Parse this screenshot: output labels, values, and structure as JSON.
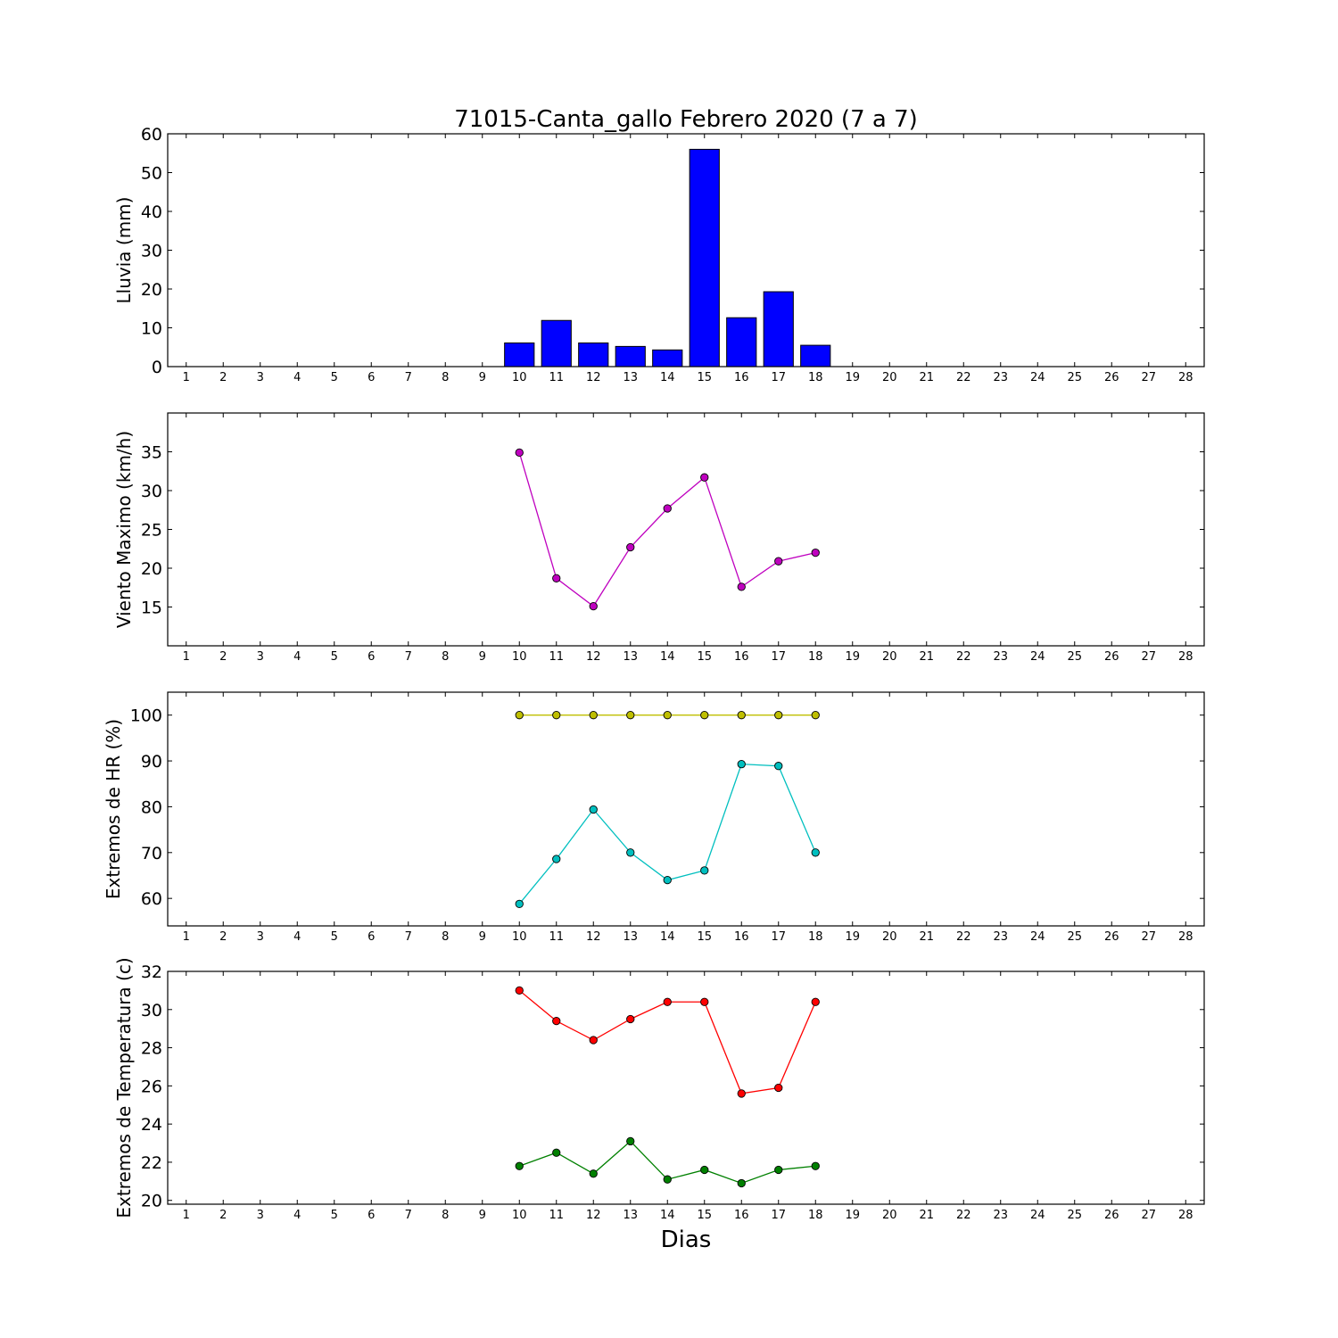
{
  "title": "71015-Canta_gallo Febrero 2020  (7 a 7)",
  "xlabel": "Dias",
  "chart_data": [
    {
      "type": "bar",
      "ylabel": "Lluvia (mm)",
      "ylim": [
        0,
        60
      ],
      "yticks": [
        0,
        10,
        20,
        30,
        40,
        50,
        60
      ],
      "xticks": [
        1,
        2,
        3,
        4,
        5,
        6,
        7,
        8,
        9,
        10,
        11,
        12,
        13,
        14,
        15,
        16,
        17,
        18,
        19,
        20,
        21,
        22,
        23,
        24,
        25,
        26,
        27,
        28
      ],
      "xlim": [
        0.5,
        28.5
      ],
      "color": "#0000ff",
      "x": [
        10,
        11,
        12,
        13,
        14,
        15,
        16,
        17,
        18
      ],
      "values": [
        6.1,
        11.9,
        6.1,
        5.2,
        4.3,
        56.0,
        12.6,
        19.3,
        5.5
      ]
    },
    {
      "type": "line",
      "ylabel": "Viento Maximo (km/h)",
      "ylim": [
        10,
        40
      ],
      "yticks": [
        15,
        20,
        25,
        30,
        35
      ],
      "xticks": [
        1,
        2,
        3,
        4,
        5,
        6,
        7,
        8,
        9,
        10,
        11,
        12,
        13,
        14,
        15,
        16,
        17,
        18,
        19,
        20,
        21,
        22,
        23,
        24,
        25,
        26,
        27,
        28
      ],
      "xlim": [
        0.5,
        28.5
      ],
      "series": [
        {
          "color": "#bf00bf",
          "x": [
            10,
            11,
            12,
            13,
            14,
            15,
            16,
            17,
            18
          ],
          "values": [
            34.9,
            18.7,
            15.1,
            22.7,
            27.7,
            31.7,
            17.6,
            20.9,
            22.0
          ]
        }
      ]
    },
    {
      "type": "line",
      "ylabel": "Extremos de HR (%)",
      "ylim": [
        54,
        105
      ],
      "yticks": [
        60,
        70,
        80,
        90,
        100
      ],
      "xticks": [
        1,
        2,
        3,
        4,
        5,
        6,
        7,
        8,
        9,
        10,
        11,
        12,
        13,
        14,
        15,
        16,
        17,
        18,
        19,
        20,
        21,
        22,
        23,
        24,
        25,
        26,
        27,
        28
      ],
      "xlim": [
        0.5,
        28.5
      ],
      "series": [
        {
          "color": "#bfbf00",
          "x": [
            10,
            11,
            12,
            13,
            14,
            15,
            16,
            17,
            18
          ],
          "values": [
            100,
            100,
            100,
            100,
            100,
            100,
            100,
            100,
            100
          ]
        },
        {
          "color": "#00bfbf",
          "x": [
            10,
            11,
            12,
            13,
            14,
            15,
            16,
            17,
            18
          ],
          "values": [
            58.8,
            68.6,
            79.4,
            70.0,
            64.0,
            66.1,
            89.3,
            88.9,
            70.0
          ]
        }
      ]
    },
    {
      "type": "line",
      "ylabel": "Extremos de Temperatura (c)",
      "ylim": [
        19.8,
        32
      ],
      "yticks": [
        20,
        22,
        24,
        26,
        28,
        30,
        32
      ],
      "xticks": [
        1,
        2,
        3,
        4,
        5,
        6,
        7,
        8,
        9,
        10,
        11,
        12,
        13,
        14,
        15,
        16,
        17,
        18,
        19,
        20,
        21,
        22,
        23,
        24,
        25,
        26,
        27,
        28
      ],
      "xlim": [
        0.5,
        28.5
      ],
      "series": [
        {
          "color": "#ff0000",
          "x": [
            10,
            11,
            12,
            13,
            14,
            15,
            16,
            17,
            18
          ],
          "values": [
            31.0,
            29.4,
            28.4,
            29.5,
            30.4,
            30.4,
            25.6,
            25.9,
            30.4
          ]
        },
        {
          "color": "#008000",
          "x": [
            10,
            11,
            12,
            13,
            14,
            15,
            16,
            17,
            18
          ],
          "values": [
            21.8,
            22.5,
            21.4,
            23.1,
            21.1,
            21.6,
            20.9,
            21.6,
            21.8
          ]
        }
      ]
    }
  ]
}
